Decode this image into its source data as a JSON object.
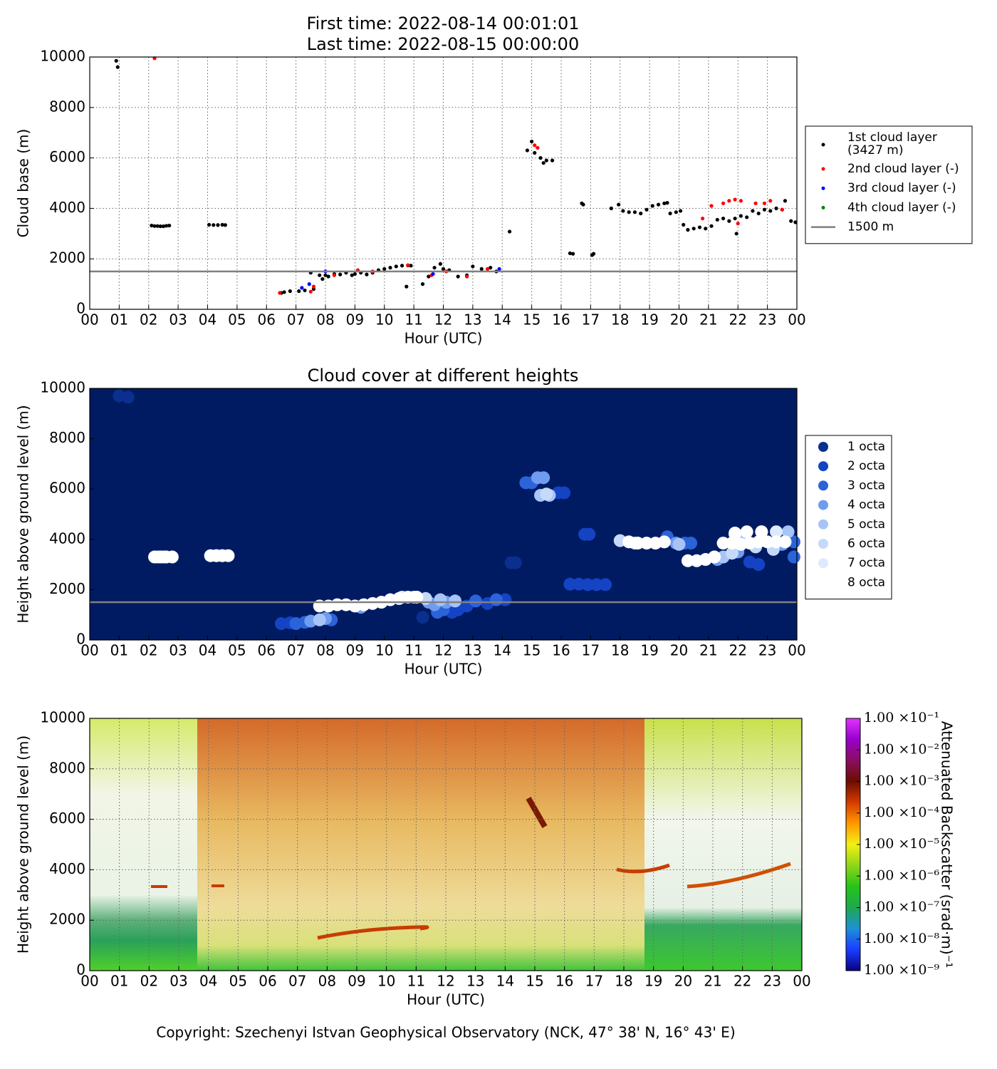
{
  "chart_data": [
    {
      "type": "scatter",
      "title": [
        "First time: 2022-08-14 00:01:01",
        "Last time: 2022-08-15 00:00:00"
      ],
      "xlabel": "Hour (UTC)",
      "ylabel": "Cloud base (m)",
      "xlim": [
        0,
        24
      ],
      "ylim": [
        0,
        10000
      ],
      "grid": true,
      "legend": "outside-right",
      "xticks": [
        {
          "value": 0,
          "label": "00"
        },
        {
          "value": 1,
          "label": "01"
        },
        {
          "value": 2,
          "label": "02"
        },
        {
          "value": 3,
          "label": "03"
        },
        {
          "value": 4,
          "label": "04"
        },
        {
          "value": 5,
          "label": "05"
        },
        {
          "value": 6,
          "label": "06"
        },
        {
          "value": 7,
          "label": "07"
        },
        {
          "value": 8,
          "label": "08"
        },
        {
          "value": 9,
          "label": "09"
        },
        {
          "value": 10,
          "label": "10"
        },
        {
          "value": 11,
          "label": "11"
        },
        {
          "value": 12,
          "label": "12"
        },
        {
          "value": 13,
          "label": "13"
        },
        {
          "value": 14,
          "label": "14"
        },
        {
          "value": 15,
          "label": "15"
        },
        {
          "value": 16,
          "label": "16"
        },
        {
          "value": 17,
          "label": "17"
        },
        {
          "value": 18,
          "label": "18"
        },
        {
          "value": 19,
          "label": "19"
        },
        {
          "value": 20,
          "label": "20"
        },
        {
          "value": 21,
          "label": "21"
        },
        {
          "value": 22,
          "label": "22"
        },
        {
          "value": 23,
          "label": "23"
        },
        {
          "value": 24,
          "label": "00"
        }
      ],
      "yticks": [
        0,
        2000,
        4000,
        6000,
        8000,
        10000
      ],
      "hline": {
        "name": "1500 m",
        "value": 1500,
        "color": "#808080"
      },
      "series": [
        {
          "name": "1st cloud layer\n(3427 m)",
          "color": "#000000",
          "x": [
            0.9,
            0.95,
            2.1,
            2.2,
            2.3,
            2.4,
            2.5,
            2.6,
            2.7,
            4.05,
            4.2,
            4.35,
            4.5,
            4.6,
            6.5,
            6.6,
            6.8,
            7.1,
            7.3,
            7.5,
            7.6,
            7.8,
            7.9,
            8.0,
            8.1,
            8.3,
            8.5,
            8.7,
            8.9,
            9.0,
            9.2,
            9.4,
            9.6,
            9.8,
            10.0,
            10.2,
            10.4,
            10.6,
            10.8,
            10.9,
            10.75,
            11.3,
            11.5,
            11.7,
            11.9,
            12.0,
            12.2,
            12.5,
            12.8,
            13.0,
            13.3,
            13.6,
            13.8,
            14.25,
            14.85,
            15.0,
            15.1,
            15.3,
            15.4,
            15.5,
            15.7,
            16.3,
            16.4,
            16.7,
            16.75,
            17.05,
            17.1,
            17.7,
            17.95,
            18.1,
            18.3,
            18.5,
            18.7,
            18.9,
            19.1,
            19.3,
            19.5,
            19.6,
            19.7,
            19.9,
            20.05,
            20.15,
            20.3,
            20.5,
            20.7,
            20.9,
            21.1,
            21.3,
            21.5,
            21.7,
            21.9,
            21.95,
            22.1,
            22.3,
            22.5,
            22.7,
            22.9,
            23.1,
            23.3,
            23.5,
            23.6,
            23.8,
            23.95
          ],
          "values": [
            9850,
            9600,
            3320,
            3300,
            3300,
            3290,
            3290,
            3310,
            3320,
            3350,
            3340,
            3340,
            3350,
            3340,
            650,
            680,
            720,
            720,
            750,
            1450,
            800,
            1350,
            1200,
            1350,
            1300,
            1400,
            1380,
            1450,
            1350,
            1400,
            1450,
            1380,
            1450,
            1550,
            1600,
            1650,
            1700,
            1730,
            1740,
            1730,
            900,
            1000,
            1300,
            1650,
            1800,
            1600,
            1550,
            1300,
            1350,
            1700,
            1600,
            1650,
            1500,
            3080,
            6300,
            6650,
            6200,
            6000,
            5800,
            5900,
            5900,
            2220,
            2200,
            4200,
            4150,
            2150,
            2200,
            4000,
            4150,
            3900,
            3850,
            3850,
            3800,
            3950,
            4100,
            4150,
            4200,
            4220,
            3800,
            3850,
            3900,
            3350,
            3150,
            3200,
            3250,
            3200,
            3300,
            3550,
            3600,
            3500,
            3600,
            3000,
            3700,
            3650,
            3900,
            3800,
            3950,
            3900,
            4000,
            3950,
            4300,
            3500,
            3450
          ]
        },
        {
          "name": "2nd cloud layer (-)",
          "color": "#ff0000",
          "x": [
            2.2,
            6.45,
            7.5,
            7.6,
            8.3,
            9.1,
            9.6,
            10.8,
            11.6,
            12.1,
            12.8,
            13.5,
            15.1,
            15.2,
            20.8,
            21.1,
            21.5,
            21.7,
            21.9,
            22.0,
            22.1,
            22.6,
            22.9,
            23.1,
            23.5
          ],
          "values": [
            9950,
            650,
            700,
            900,
            1350,
            1550,
            1500,
            1750,
            1350,
            1500,
            1300,
            1600,
            6500,
            6400,
            3600,
            4100,
            4200,
            4300,
            4350,
            3400,
            4300,
            4200,
            4200,
            4300,
            3950
          ]
        },
        {
          "name": "3rd cloud layer (-)",
          "color": "#0000ff",
          "x": [
            7.2,
            7.45,
            8.0,
            11.65,
            13.9
          ],
          "values": [
            850,
            1000,
            1500,
            1400,
            1600
          ]
        },
        {
          "name": "4th cloud layer (-)",
          "color": "#008000",
          "x": [],
          "values": []
        }
      ]
    },
    {
      "type": "cloudcover",
      "title": "Cloud cover at different heights",
      "xlabel": "Hour (UTC)",
      "ylabel": "Height above ground level (m)",
      "xlim": [
        0,
        24
      ],
      "ylim": [
        0,
        10000
      ],
      "grid": false,
      "legend": "outside-right",
      "background": "#001b62",
      "xticks": [
        {
          "value": 0,
          "label": "00"
        },
        {
          "value": 1,
          "label": "01"
        },
        {
          "value": 2,
          "label": "02"
        },
        {
          "value": 3,
          "label": "03"
        },
        {
          "value": 4,
          "label": "04"
        },
        {
          "value": 5,
          "label": "05"
        },
        {
          "value": 6,
          "label": "06"
        },
        {
          "value": 7,
          "label": "07"
        },
        {
          "value": 8,
          "label": "08"
        },
        {
          "value": 9,
          "label": "09"
        },
        {
          "value": 10,
          "label": "10"
        },
        {
          "value": 11,
          "label": "11"
        },
        {
          "value": 12,
          "label": "12"
        },
        {
          "value": 13,
          "label": "13"
        },
        {
          "value": 14,
          "label": "14"
        },
        {
          "value": 15,
          "label": "15"
        },
        {
          "value": 16,
          "label": "16"
        },
        {
          "value": 17,
          "label": "17"
        },
        {
          "value": 18,
          "label": "18"
        },
        {
          "value": 19,
          "label": "19"
        },
        {
          "value": 20,
          "label": "20"
        },
        {
          "value": 21,
          "label": "21"
        },
        {
          "value": 22,
          "label": "22"
        },
        {
          "value": 23,
          "label": "23"
        },
        {
          "value": 24,
          "label": "00"
        }
      ],
      "yticks": [
        0,
        2000,
        4000,
        6000,
        8000,
        10000
      ],
      "hline": {
        "value": 1500,
        "color": "#808080"
      },
      "series": [
        {
          "name": "1 octa",
          "color": "#0b2f8e",
          "x": [
            1.0,
            1.3,
            11.3,
            14.3,
            14.45
          ],
          "values": [
            9700,
            9650,
            900,
            3070,
            3070
          ]
        },
        {
          "name": "2 octa",
          "color": "#1444c4",
          "x": [
            16.3,
            16.6,
            16.9,
            17.2,
            17.5,
            16.8,
            16.95,
            15.9,
            16.1,
            22.4,
            22.7,
            12.3,
            12.5,
            12.8,
            13.5,
            14.1,
            6.5,
            6.8
          ],
          "values": [
            2220,
            2220,
            2200,
            2200,
            2200,
            4200,
            4200,
            5850,
            5850,
            3100,
            3000,
            1100,
            1200,
            1350,
            1450,
            1600,
            650,
            680
          ]
        },
        {
          "name": "3 octa",
          "color": "#2b63d9",
          "x": [
            7.0,
            7.3,
            8.2,
            11.8,
            12.0,
            13.1,
            13.8,
            14.8,
            15.0,
            19.6,
            20.4,
            20.2,
            23.9,
            23.9
          ],
          "values": [
            650,
            700,
            800,
            1100,
            1200,
            1550,
            1600,
            6250,
            6250,
            4100,
            3850,
            3850,
            3300,
            3900
          ]
        },
        {
          "name": "4 octa",
          "color": "#6f9cf0",
          "x": [
            7.5,
            8.0,
            9.2,
            11.5,
            11.7,
            12.1,
            15.4,
            15.2,
            19.9,
            21.3,
            22.0,
            23.5
          ],
          "values": [
            750,
            850,
            1300,
            1500,
            1400,
            1500,
            6450,
            6450,
            3850,
            3200,
            3500,
            3800
          ]
        },
        {
          "name": "5 octa",
          "color": "#a8c4f7",
          "x": [
            7.8,
            12.4,
            15.3,
            15.6,
            11.9,
            20.0,
            21.5,
            22.2,
            23.7
          ],
          "values": [
            800,
            1550,
            5750,
            5750,
            1600,
            3800,
            3300,
            4100,
            4300
          ]
        },
        {
          "name": "6 octa",
          "color": "#c5d9f9",
          "x": [
            2.3,
            4.3,
            15.5,
            11.4,
            18.0,
            21.8,
            22.6,
            23.2
          ],
          "values": [
            3300,
            3350,
            5800,
            1650,
            3950,
            3450,
            3700,
            3600
          ]
        },
        {
          "name": "7 octa",
          "color": "#dcebfd",
          "x": [
            2.5,
            4.5,
            10.6,
            11.0,
            18.5,
            21.9,
            22.8,
            23.3
          ],
          "values": [
            3300,
            3350,
            1700,
            1700,
            3850,
            4200,
            4300,
            4300
          ]
        },
        {
          "name": "8 octa",
          "color": "#ffffff",
          "x": [
            2.2,
            2.4,
            2.6,
            2.8,
            4.1,
            4.3,
            4.5,
            4.7,
            7.8,
            8.1,
            8.4,
            8.7,
            9.0,
            9.3,
            9.6,
            9.9,
            10.2,
            10.5,
            10.8,
            11.1,
            18.3,
            18.6,
            18.9,
            19.2,
            19.5,
            20.3,
            20.6,
            20.9,
            21.2,
            21.5,
            21.8,
            22.1,
            22.4,
            22.7,
            23.0,
            23.3,
            23.6,
            21.9,
            22.3,
            22.8
          ],
          "values": [
            3300,
            3300,
            3300,
            3300,
            3350,
            3350,
            3350,
            3350,
            1350,
            1350,
            1400,
            1400,
            1350,
            1400,
            1450,
            1500,
            1600,
            1650,
            1700,
            1700,
            3900,
            3850,
            3850,
            3850,
            3900,
            3150,
            3150,
            3200,
            3300,
            3850,
            3850,
            3800,
            3850,
            3900,
            3900,
            3900,
            3900,
            4250,
            4300,
            4300
          ]
        }
      ]
    },
    {
      "type": "heatmap",
      "xlabel": "Hour (UTC)",
      "ylabel": "Height above ground level (m)",
      "xlim": [
        0,
        24
      ],
      "ylim": [
        0,
        10000
      ],
      "grid": true,
      "xticks": [
        {
          "value": 0,
          "label": "00"
        },
        {
          "value": 1,
          "label": "01"
        },
        {
          "value": 2,
          "label": "02"
        },
        {
          "value": 3,
          "label": "03"
        },
        {
          "value": 4,
          "label": "04"
        },
        {
          "value": 5,
          "label": "05"
        },
        {
          "value": 6,
          "label": "06"
        },
        {
          "value": 7,
          "label": "07"
        },
        {
          "value": 8,
          "label": "08"
        },
        {
          "value": 9,
          "label": "09"
        },
        {
          "value": 10,
          "label": "10"
        },
        {
          "value": 11,
          "label": "11"
        },
        {
          "value": 12,
          "label": "12"
        },
        {
          "value": 13,
          "label": "13"
        },
        {
          "value": 14,
          "label": "14"
        },
        {
          "value": 15,
          "label": "15"
        },
        {
          "value": 16,
          "label": "16"
        },
        {
          "value": 17,
          "label": "17"
        },
        {
          "value": 18,
          "label": "18"
        },
        {
          "value": 19,
          "label": "19"
        },
        {
          "value": 20,
          "label": "20"
        },
        {
          "value": 21,
          "label": "21"
        },
        {
          "value": 22,
          "label": "22"
        },
        {
          "value": 23,
          "label": "23"
        },
        {
          "value": 24,
          "label": "00"
        }
      ],
      "yticks": [
        0,
        2000,
        4000,
        6000,
        8000,
        10000
      ],
      "colorbar": {
        "label": "Attenuated Backscatter (srad·m)⁻¹",
        "log": true,
        "clim": [
          1e-09,
          0.1
        ],
        "colormap": [
          "#0a0080",
          "#1a3cff",
          "#1e90d8",
          "#1fa84f",
          "#25c41a",
          "#8fd61a",
          "#f4f012",
          "#ff9800",
          "#d43c00",
          "#6b0d00",
          "#8a0e60",
          "#9900cc",
          "#e033ff"
        ],
        "ticks": [
          {
            "value": 1e-09,
            "label": "1.00 ×10⁻⁹"
          },
          {
            "value": 1e-08,
            "label": "1.00 ×10⁻⁸"
          },
          {
            "value": 1e-07,
            "label": "1.00 ×10⁻⁷"
          },
          {
            "value": 1e-06,
            "label": "1.00 ×10⁻⁶"
          },
          {
            "value": 1e-05,
            "label": "1.00 ×10⁻⁵"
          },
          {
            "value": 0.0001,
            "label": "1.00 ×10⁻⁴"
          },
          {
            "value": 0.001,
            "label": "1.00 ×10⁻³"
          },
          {
            "value": 0.01,
            "label": "1.00 ×10⁻²"
          },
          {
            "value": 0.1,
            "label": "1.00 ×10⁻¹"
          }
        ]
      },
      "footer": "Copyright: Szechenyi Istvan Geophysical Observatory (NCK, 47° 38' N, 16° 43' E)"
    }
  ]
}
